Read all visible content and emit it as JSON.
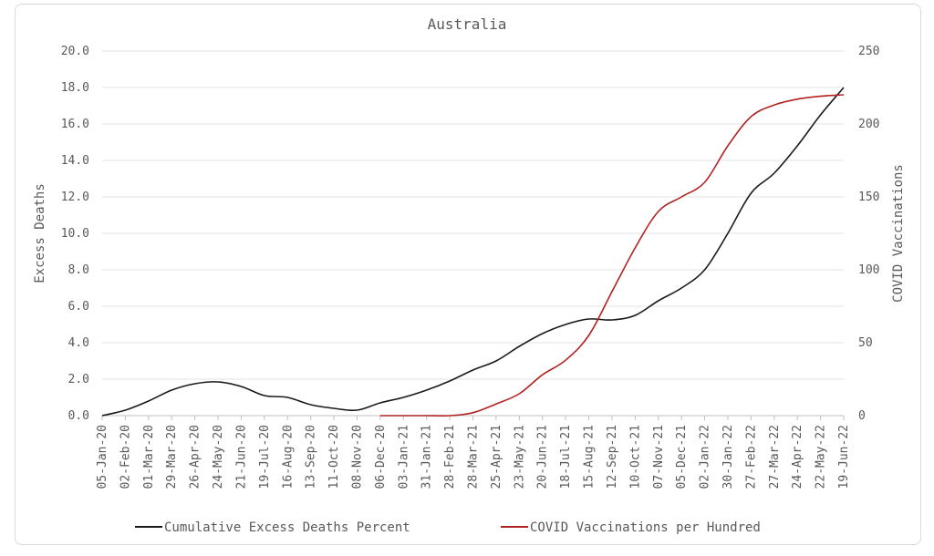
{
  "chart_data": {
    "type": "line",
    "title": "Australia",
    "ylabel_left": "Excess Deaths",
    "ylabel_right": "COVID Vaccinations",
    "ylim_left": [
      0,
      20
    ],
    "ylim_right": [
      0,
      250
    ],
    "yticks_left": [
      "0.0",
      "2.0",
      "4.0",
      "6.0",
      "8.0",
      "10.0",
      "12.0",
      "14.0",
      "16.0",
      "18.0",
      "20.0"
    ],
    "yticks_right": [
      "0",
      "50",
      "100",
      "150",
      "200",
      "250"
    ],
    "x_ticks": [
      "05-Jan-20",
      "02-Feb-20",
      "01-Mar-20",
      "29-Mar-20",
      "26-Apr-20",
      "24-May-20",
      "21-Jun-20",
      "19-Jul-20",
      "16-Aug-20",
      "13-Sep-20",
      "11-Oct-20",
      "08-Nov-20",
      "06-Dec-20",
      "03-Jan-21",
      "31-Jan-21",
      "28-Feb-21",
      "28-Mar-21",
      "25-Apr-21",
      "23-May-21",
      "20-Jun-21",
      "18-Jul-21",
      "15-Aug-21",
      "12-Sep-21",
      "10-Oct-21",
      "07-Nov-21",
      "05-Dec-21",
      "02-Jan-22",
      "30-Jan-22",
      "27-Feb-22",
      "27-Mar-22",
      "24-Apr-22",
      "22-May-22",
      "19-Jun-22"
    ],
    "grid": true,
    "legend_position": "bottom",
    "series": [
      {
        "name": "Cumulative Excess Deaths Percent",
        "axis": "left",
        "color": "#1a1a1a",
        "x": [
          "05-Jan-20",
          "02-Feb-20",
          "01-Mar-20",
          "29-Mar-20",
          "26-Apr-20",
          "24-May-20",
          "21-Jun-20",
          "19-Jul-20",
          "16-Aug-20",
          "13-Sep-20",
          "11-Oct-20",
          "08-Nov-20",
          "06-Dec-20",
          "03-Jan-21",
          "31-Jan-21",
          "28-Feb-21",
          "28-Mar-21",
          "25-Apr-21",
          "23-May-21",
          "20-Jun-21",
          "18-Jul-21",
          "15-Aug-21",
          "12-Sep-21",
          "10-Oct-21",
          "07-Nov-21",
          "05-Dec-21",
          "02-Jan-22",
          "30-Jan-22",
          "27-Feb-22",
          "27-Mar-22",
          "24-Apr-22",
          "22-May-22",
          "19-Jun-22"
        ],
        "values": [
          0.0,
          0.3,
          0.8,
          1.4,
          1.75,
          1.85,
          1.6,
          1.1,
          1.0,
          0.6,
          0.4,
          0.3,
          0.7,
          1.0,
          1.4,
          1.9,
          2.5,
          3.0,
          3.8,
          4.5,
          5.0,
          5.3,
          5.25,
          5.5,
          6.3,
          7.0,
          8.0,
          10.0,
          12.2,
          13.3,
          14.8,
          16.5,
          18.0
        ]
      },
      {
        "name": "COVID Vaccinations per Hundred",
        "axis": "right",
        "color": "#b22222",
        "x": [
          "06-Dec-20",
          "03-Jan-21",
          "31-Jan-21",
          "28-Feb-21",
          "28-Mar-21",
          "25-Apr-21",
          "23-May-21",
          "20-Jun-21",
          "18-Jul-21",
          "15-Aug-21",
          "12-Sep-21",
          "10-Oct-21",
          "07-Nov-21",
          "05-Dec-21",
          "02-Jan-22",
          "30-Jan-22",
          "27-Feb-22",
          "27-Mar-22",
          "24-Apr-22",
          "22-May-22",
          "19-Jun-22"
        ],
        "values": [
          0,
          0,
          0,
          0,
          2,
          8,
          15,
          28,
          38,
          55,
          85,
          115,
          140,
          150,
          160,
          185,
          205,
          213,
          217,
          219,
          220
        ]
      }
    ]
  }
}
